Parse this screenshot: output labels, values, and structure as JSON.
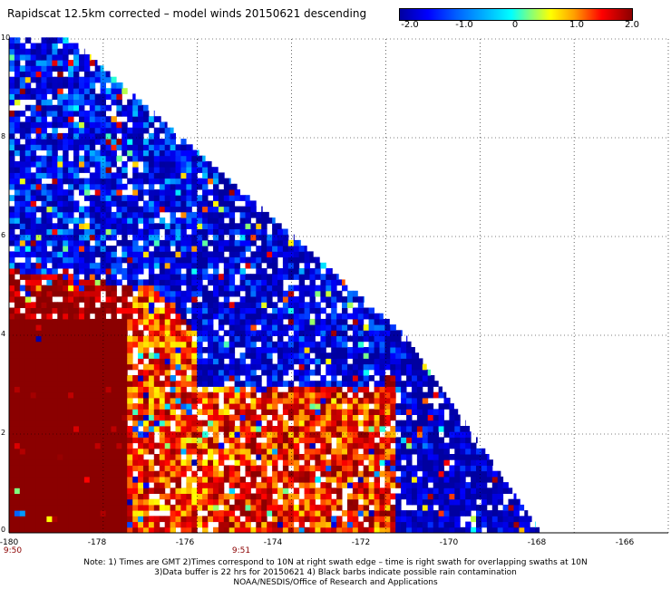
{
  "title": "Rapidscat 12.5km corrected – model winds 20150621 descending",
  "colorbar": {
    "ticks": [
      "-2.0",
      "-1.0",
      "0",
      "1.0",
      "2.0"
    ],
    "range": [
      -2.0,
      2.0
    ],
    "colors": [
      "#0000a0",
      "#0000ff",
      "#00ffff",
      "#ffff00",
      "#ff0000",
      "#8b0000"
    ]
  },
  "axes": {
    "x_ticks": [
      "-180",
      "-178",
      "-176",
      "-174",
      "-172",
      "-170",
      "-168",
      "-166"
    ],
    "y_ticks": [
      "0",
      "2",
      "4",
      "6",
      "8",
      "10"
    ],
    "x_range": [
      -180,
      -166
    ],
    "y_range": [
      0,
      10
    ],
    "grid": "dotted"
  },
  "time_labels": [
    "9:50",
    "9:51"
  ],
  "notes": [
    "Note: 1) Times are GMT 2)Times correspond to 10N at right swath edge – time is right swath for overlapping swaths at 10N",
    "3)Data buffer is 22 hrs for 20150621 4) Black barbs indicate possible rain contamination",
    "NOAA/NESDIS/Office of Research and Applications"
  ],
  "chart_data": {
    "type": "heatmap",
    "title": "Rapidscat 12.5km corrected – model winds 20150621 descending",
    "x_range": [
      -180,
      -166
    ],
    "y_range": [
      0,
      10
    ],
    "value_range": [
      -2.0,
      2.0
    ],
    "swath_edge": [
      [
        -180,
        10
      ],
      [
        -178.7,
        10
      ],
      [
        -171.6,
        4
      ],
      [
        -170.0,
        1.8
      ],
      [
        -168.7,
        0
      ]
    ],
    "regions": [
      {
        "lon_range": [
          -180,
          -177.5
        ],
        "lat_range": [
          0,
          4.5
        ],
        "typical_value": 2.0
      },
      {
        "lon_range": [
          -177.5,
          -176
        ],
        "lat_range": [
          0,
          4
        ],
        "typical_value": 1.2
      },
      {
        "lon_range": [
          -180,
          -176
        ],
        "lat_range": [
          6,
          10
        ],
        "typical_value": -1.4
      },
      {
        "lon_range": [
          -176,
          -172
        ],
        "lat_range": [
          3,
          7
        ],
        "typical_value": -1.6
      },
      {
        "lon_range": [
          -171,
          -169
        ],
        "lat_range": [
          0,
          2
        ],
        "typical_value": -1.8
      },
      {
        "lon_range": [
          -175,
          -172
        ],
        "lat_range": [
          0,
          2
        ],
        "typical_value": 1.3
      }
    ]
  }
}
